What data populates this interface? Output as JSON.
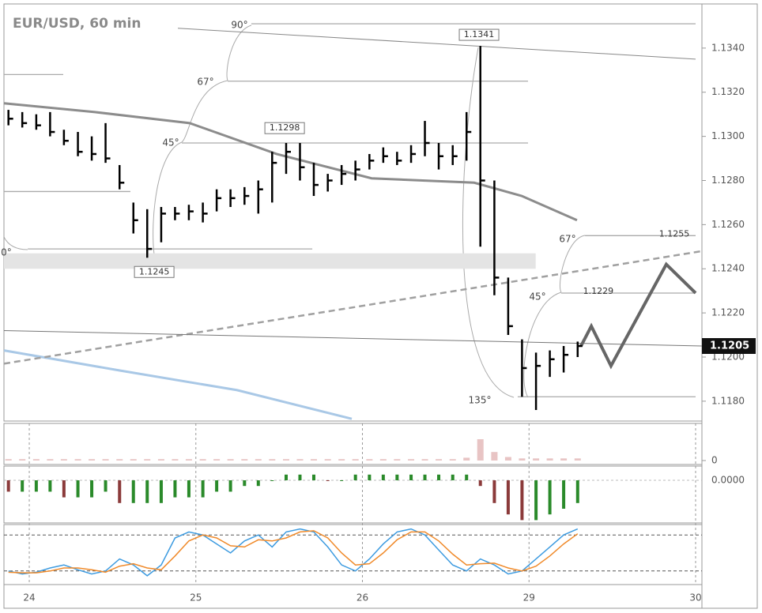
{
  "chart_data": [
    {
      "type": "ohlc",
      "title": "EUR/USD, 60 min",
      "color": "#000000",
      "x": [
        -0.125,
        -0.042,
        0.042,
        0.125,
        0.208,
        0.292,
        0.375,
        0.458,
        0.542,
        0.625,
        0.708,
        0.792,
        0.875,
        0.958,
        1.042,
        1.125,
        1.208,
        1.292,
        1.375,
        1.458,
        1.542,
        1.625,
        1.708,
        1.792,
        1.875,
        1.958,
        2.042,
        2.125,
        2.208,
        2.292,
        2.375,
        2.458,
        2.542,
        2.625,
        2.708,
        2.792,
        2.875,
        2.958,
        3.042,
        3.125,
        3.208,
        3.292
      ],
      "high": [
        1.1312,
        1.1311,
        1.131,
        1.1311,
        1.1303,
        1.1302,
        1.13,
        1.1306,
        1.1287,
        1.127,
        1.1267,
        1.1268,
        1.1268,
        1.1269,
        1.127,
        1.1276,
        1.1276,
        1.1277,
        1.128,
        1.1293,
        1.1297,
        1.1297,
        1.1288,
        1.1283,
        1.1287,
        1.1289,
        1.1292,
        1.1295,
        1.1293,
        1.1296,
        1.1307,
        1.1297,
        1.1296,
        1.1311,
        1.1341,
        1.128,
        1.1236,
        1.1208,
        1.1202,
        1.1203,
        1.1205,
        1.1207
      ],
      "low": [
        1.1305,
        1.1304,
        1.1303,
        1.13,
        1.1296,
        1.1291,
        1.1289,
        1.1288,
        1.1276,
        1.1256,
        1.1245,
        1.1252,
        1.1262,
        1.1262,
        1.1261,
        1.1266,
        1.1268,
        1.1269,
        1.1265,
        1.127,
        1.1283,
        1.128,
        1.1273,
        1.1275,
        1.1278,
        1.128,
        1.1285,
        1.1288,
        1.1287,
        1.1288,
        1.1291,
        1.1285,
        1.1287,
        1.1289,
        1.125,
        1.1228,
        1.121,
        1.1182,
        1.1176,
        1.1191,
        1.1193,
        1.12
      ],
      "close": [
        1.1308,
        1.1306,
        1.1305,
        1.1302,
        1.1298,
        1.1293,
        1.1292,
        1.129,
        1.1279,
        1.1262,
        1.1249,
        1.1265,
        1.1265,
        1.1266,
        1.1265,
        1.1272,
        1.1272,
        1.1273,
        1.1276,
        1.1288,
        1.1293,
        1.1286,
        1.1278,
        1.128,
        1.1283,
        1.1285,
        1.1289,
        1.1291,
        1.1289,
        1.1292,
        1.1297,
        1.1291,
        1.1291,
        1.1302,
        1.128,
        1.1236,
        1.1214,
        1.1195,
        1.1196,
        1.1199,
        1.1201,
        1.1205
      ],
      "xlim": [
        -0.152,
        4.038
      ],
      "xticks": [
        {
          "value": 0,
          "label": "24"
        },
        {
          "value": 1,
          "label": "25"
        },
        {
          "value": 2,
          "label": "26"
        },
        {
          "value": 3,
          "label": "29"
        },
        {
          "value": 4,
          "label": "30"
        }
      ],
      "ylim": [
        1.1171,
        1.136
      ],
      "yticks": [
        {
          "value": 1.118,
          "label": "1.1180"
        },
        {
          "value": 1.12,
          "label": "1.1200"
        },
        {
          "value": 1.122,
          "label": "1.1220"
        },
        {
          "value": 1.124,
          "label": "1.1240"
        },
        {
          "value": 1.126,
          "label": "1.1260"
        },
        {
          "value": 1.128,
          "label": "1.1280"
        },
        {
          "value": 1.13,
          "label": "1.1300"
        },
        {
          "value": 1.132,
          "label": "1.1320"
        },
        {
          "value": 1.134,
          "label": "1.1340"
        }
      ],
      "last_price": 1.1205,
      "lines": [
        {
          "color": "#8c8c8c",
          "dash": false,
          "x": [
            -0.152,
            0.394,
            0.963,
            1.485,
            2.055,
            2.671,
            2.956,
            3.288
          ],
          "values": [
            1.1315,
            1.1311,
            1.1306,
            1.1292,
            1.1281,
            1.1279,
            1.1273,
            1.1262
          ]
        },
        {
          "color": "#a9c8e6",
          "dash": false,
          "x": [
            -0.152,
            0.536,
            1.248,
            1.936
          ],
          "values": [
            1.1203,
            1.1194,
            1.1185,
            1.1172
          ]
        },
        {
          "color": "#a0a0a0",
          "dash": true,
          "x": [
            -0.152,
            4.038
          ],
          "values": [
            1.1197,
            1.1248
          ]
        },
        {
          "color": "#777777",
          "dash": false,
          "x": [
            -0.152,
            4.038
          ],
          "values": [
            1.1212,
            1.1205
          ]
        },
        {
          "color": "#888888",
          "dash": false,
          "x": [
            0.892,
            4.0
          ],
          "values": [
            1.1349,
            1.1335
          ]
        },
        {
          "color": "#666666",
          "dash": false,
          "x": [
            3.312,
            3.374,
            3.492,
            3.824,
            4.0
          ],
          "values": [
            1.1205,
            1.1214,
            1.1196,
            1.1242,
            1.1229
          ]
        }
      ],
      "levels": [
        {
          "value": 1.1351,
          "x": [
            1.333,
            4.0
          ]
        },
        {
          "value": 1.1325,
          "x": [
            1.191,
            2.994
          ]
        },
        {
          "value": 1.1297,
          "x": [
            0.916,
            2.994
          ]
        },
        {
          "value": 1.1275,
          "x": [
            -0.152,
            0.607
          ]
        },
        {
          "value": 1.1249,
          "x": [
            -0.009,
            1.699
          ]
        },
        {
          "value": 1.1328,
          "x": [
            -0.152,
            0.204
          ]
        },
        {
          "value": 1.1255,
          "x": [
            3.336,
            4.0
          ]
        },
        {
          "value": 1.1229,
          "x": [
            3.193,
            4.0
          ]
        },
        {
          "value": 1.1182,
          "x": [
            2.932,
            4.0
          ]
        }
      ],
      "band": {
        "values": [
          1.124,
          1.1247
        ],
        "x": [
          -0.152,
          3.04
        ]
      },
      "price_labels": [
        {
          "value": 1.1341,
          "x": 2.7
        },
        {
          "value": 1.1298,
          "x": 1.533
        },
        {
          "value": 1.1245,
          "x": 0.75
        },
        {
          "value": 1.1255,
          "x": 3.872
        },
        {
          "value": 1.1229,
          "x": 3.416
        }
      ],
      "angle_labels": [
        "90°",
        "67°",
        "45°",
        "0°",
        "67°",
        "45°",
        "135°"
      ]
    },
    {
      "type": "bar",
      "color": "#e8c4c4",
      "values": [
        2,
        2,
        2,
        2,
        2,
        2,
        2,
        2,
        2,
        2,
        2,
        2,
        2,
        2,
        2,
        2,
        2,
        2,
        2,
        2,
        2,
        2,
        2,
        2,
        2,
        2,
        2,
        2,
        2,
        2,
        2,
        2,
        2,
        4,
        30,
        12,
        5,
        3,
        3,
        3,
        3,
        3
      ],
      "ylim": [
        0,
        50
      ],
      "yticks": [
        0
      ]
    },
    {
      "type": "bar",
      "up_color": "#2a8a2a",
      "down_color": "#8b3a3a",
      "values": [
        -0.0002,
        -0.0002,
        -0.0002,
        -0.0002,
        -0.0003,
        -0.0003,
        -0.0003,
        -0.0002,
        -0.0004,
        -0.0004,
        -0.0004,
        -0.0004,
        -0.0003,
        -0.0003,
        -0.0003,
        -0.0002,
        -0.0002,
        -0.0001,
        -0.0001,
        0,
        0.0001,
        0.0001,
        0.0001,
        0,
        0,
        0.0001,
        0.0001,
        0.0001,
        0.0001,
        0.0001,
        0.0001,
        0.0001,
        0.0001,
        0.0001,
        -0.0001,
        -0.0004,
        -0.0006,
        -0.0007,
        -0.0007,
        -0.0006,
        -0.0005,
        -0.0004
      ],
      "ylim": [
        -0.00075,
        0.00025
      ],
      "yticks": [
        {
          "value": 0,
          "label": "0.0000"
        }
      ]
    },
    {
      "type": "line",
      "ylim": [
        0,
        100
      ],
      "levels": [
        20,
        80
      ],
      "series": [
        {
          "color": "#3d9be0",
          "values": [
            20,
            15,
            18,
            25,
            30,
            22,
            15,
            20,
            40,
            30,
            12,
            30,
            75,
            85,
            80,
            65,
            50,
            70,
            80,
            60,
            85,
            90,
            85,
            60,
            30,
            20,
            40,
            65,
            85,
            90,
            80,
            55,
            30,
            20,
            40,
            30,
            15,
            20,
            40,
            60,
            80,
            90
          ]
        },
        {
          "color": "#f08a2a",
          "values": [
            18,
            17,
            17,
            20,
            25,
            25,
            22,
            18,
            28,
            32,
            25,
            22,
            45,
            70,
            80,
            75,
            62,
            60,
            72,
            70,
            75,
            85,
            87,
            75,
            50,
            30,
            32,
            50,
            72,
            85,
            85,
            70,
            48,
            30,
            32,
            33,
            25,
            20,
            28,
            45,
            65,
            82
          ]
        }
      ]
    }
  ]
}
